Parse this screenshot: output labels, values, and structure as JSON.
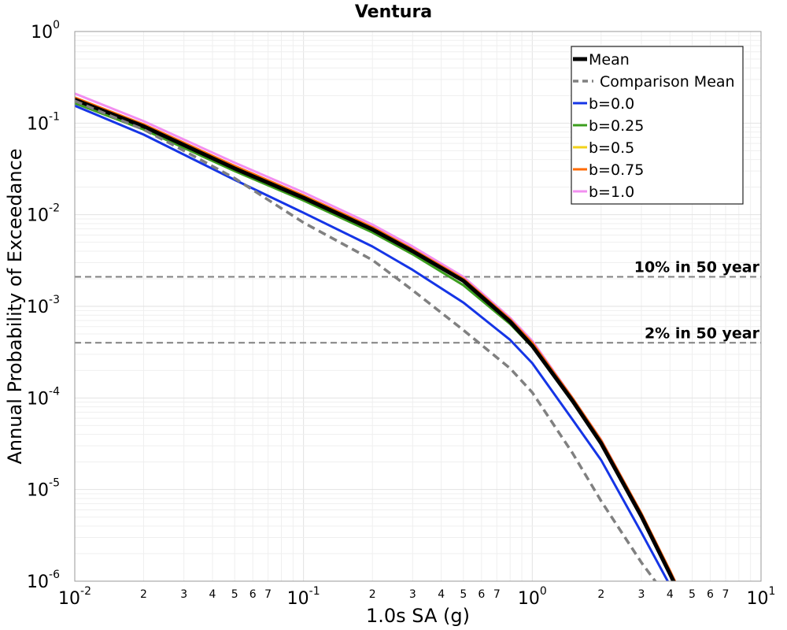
{
  "chart_data": {
    "type": "line",
    "title": "Ventura",
    "xlabel": "1.0s SA (g)",
    "ylabel": "Annual Probability of Exceedance",
    "xscale": "log",
    "yscale": "log",
    "xlim": [
      0.01,
      10
    ],
    "ylim": [
      1e-06,
      1
    ],
    "grid": true,
    "legend_position": "top-right",
    "x_major_ticks": [
      {
        "value": 0.01,
        "base": "10",
        "exp": "-2"
      },
      {
        "value": 0.1,
        "base": "10",
        "exp": "-1"
      },
      {
        "value": 1,
        "base": "10",
        "exp": "0"
      },
      {
        "value": 10,
        "base": "10",
        "exp": "1"
      }
    ],
    "x_minor_tick_labels": [
      "2",
      "3",
      "4",
      "5",
      "6",
      "7"
    ],
    "y_major_ticks": [
      {
        "value": 1e-06,
        "base": "10",
        "exp": "-6"
      },
      {
        "value": 1e-05,
        "base": "10",
        "exp": "-5"
      },
      {
        "value": 0.0001,
        "base": "10",
        "exp": "-4"
      },
      {
        "value": 0.001,
        "base": "10",
        "exp": "-3"
      },
      {
        "value": 0.01,
        "base": "10",
        "exp": "-2"
      },
      {
        "value": 0.1,
        "base": "10",
        "exp": "-1"
      },
      {
        "value": 1,
        "base": "10",
        "exp": "0"
      }
    ],
    "series": [
      {
        "name": "b=1.0",
        "color": "#f28ff0",
        "dash": "solid",
        "width": 3,
        "x": [
          0.01,
          0.02,
          0.05,
          0.1,
          0.2,
          0.3,
          0.5,
          0.8,
          1.0,
          1.5,
          2.0,
          3.0,
          4.0,
          4.5
        ],
        "y": [
          0.21,
          0.105,
          0.037,
          0.0175,
          0.0078,
          0.0045,
          0.0021,
          0.00075,
          0.00042,
          0.0001,
          3.5e-05,
          5.5e-06,
          1.3e-06,
          7e-07
        ]
      },
      {
        "name": "b=0.75",
        "color": "#ff6a00",
        "dash": "solid",
        "width": 3,
        "x": [
          0.01,
          0.02,
          0.05,
          0.1,
          0.2,
          0.3,
          0.5,
          0.8,
          1.0,
          1.5,
          2.0,
          3.0,
          4.0,
          4.5
        ],
        "y": [
          0.19,
          0.097,
          0.034,
          0.0162,
          0.0073,
          0.0042,
          0.002,
          0.00072,
          0.0004,
          9.95e-05,
          3.45e-05,
          5.5e-06,
          1.3e-06,
          7e-07
        ]
      },
      {
        "name": "b=0.5",
        "color": "#f2d21a",
        "dash": "solid",
        "width": 3,
        "x": [
          0.01,
          0.02,
          0.05,
          0.1,
          0.2,
          0.3,
          0.5,
          0.8,
          1.0,
          1.5,
          2.0,
          3.0,
          4.0,
          4.5
        ],
        "y": [
          0.178,
          0.091,
          0.032,
          0.0153,
          0.0069,
          0.004,
          0.0019,
          0.00069,
          0.00038,
          9.6e-05,
          3.3e-05,
          5.2e-06,
          1.2e-06,
          6.5e-07
        ]
      },
      {
        "name": "b=0.25",
        "color": "#3c9e1e",
        "dash": "solid",
        "width": 3,
        "x": [
          0.01,
          0.02,
          0.05,
          0.1,
          0.2,
          0.3,
          0.5,
          0.8,
          1.0,
          1.5,
          2.0,
          3.0,
          4.0,
          4.5
        ],
        "y": [
          0.165,
          0.085,
          0.03,
          0.0143,
          0.0064,
          0.0037,
          0.0017,
          0.00064,
          0.00036,
          9e-05,
          3.1e-05,
          5e-06,
          1.2e-06,
          6e-07
        ]
      },
      {
        "name": "b=0.0",
        "color": "#1535e6",
        "dash": "solid",
        "width": 3,
        "x": [
          0.01,
          0.02,
          0.05,
          0.1,
          0.2,
          0.3,
          0.5,
          0.8,
          1.0,
          1.5,
          2.0,
          3.0,
          4.0
        ],
        "y": [
          0.155,
          0.075,
          0.024,
          0.0105,
          0.0045,
          0.0025,
          0.0011,
          0.00043,
          0.00024,
          5.8e-05,
          2.1e-05,
          3.4e-06,
          9e-07
        ]
      },
      {
        "name": "Mean",
        "color": "#000000",
        "dash": "solid",
        "width": 5,
        "x": [
          0.01,
          0.02,
          0.05,
          0.1,
          0.2,
          0.3,
          0.5,
          0.8,
          1.0,
          1.5,
          2.0,
          3.0,
          4.0,
          4.5
        ],
        "y": [
          0.18,
          0.092,
          0.032,
          0.0153,
          0.0069,
          0.004,
          0.0019,
          0.00068,
          0.00037,
          9.3e-05,
          3.2e-05,
          5.1e-06,
          1.2e-06,
          6.5e-07
        ]
      },
      {
        "name": "Comparison Mean",
        "color": "#808080",
        "dash": "dashed",
        "width": 3.5,
        "x": [
          0.01,
          0.02,
          0.03,
          0.05,
          0.1,
          0.2,
          0.3,
          0.5,
          0.8,
          1.0,
          1.5,
          2.0,
          3.0,
          3.5
        ],
        "y": [
          0.175,
          0.085,
          0.05,
          0.025,
          0.0082,
          0.0032,
          0.0015,
          0.00055,
          0.00021,
          0.000115,
          2.5e-05,
          7.5e-06,
          1.6e-06,
          9.5e-07
        ]
      }
    ],
    "legend_order": [
      "Mean",
      "Comparison Mean",
      "b=0.0",
      "b=0.25",
      "b=0.5",
      "b=0.75",
      "b=1.0"
    ],
    "reference_lines": [
      {
        "label": "10% in 50 year",
        "y": 0.0021,
        "color": "#808080",
        "dash": "dashed"
      },
      {
        "label": "2% in 50 year",
        "y": 0.0004,
        "color": "#808080",
        "dash": "dashed"
      }
    ]
  }
}
